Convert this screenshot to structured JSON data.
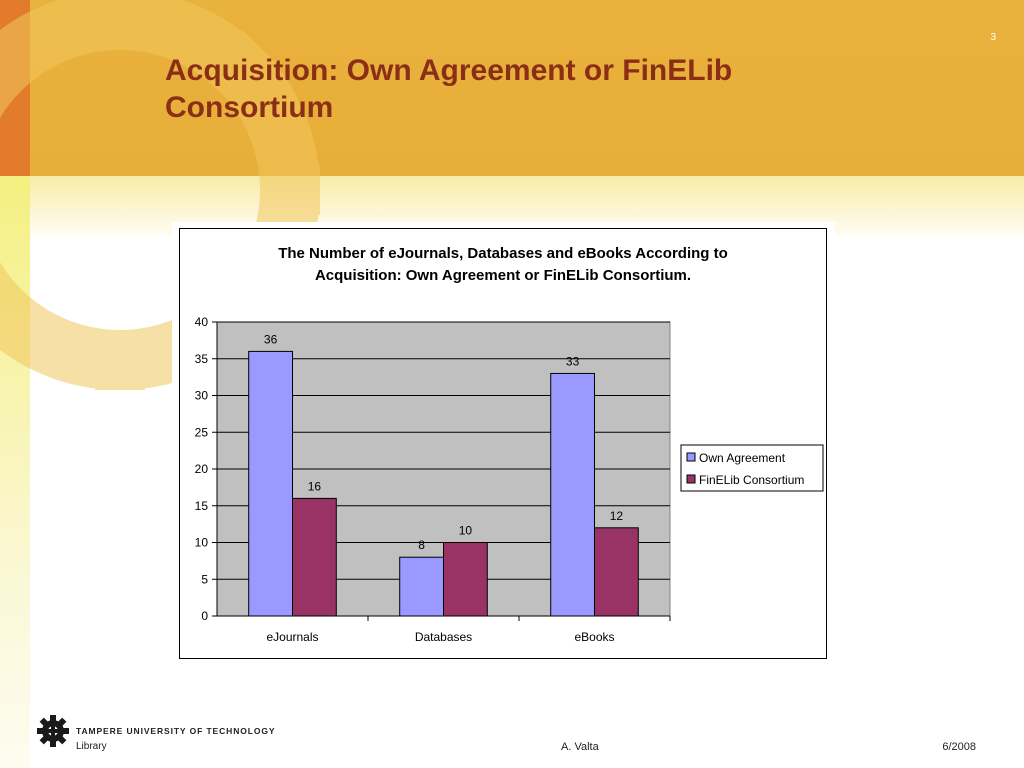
{
  "slide": {
    "number": "3",
    "title": "Acquisition: Own Agreement or FinELib Consortium",
    "colors": {
      "band": "#e9b23c",
      "title": "#8a2f16",
      "strip": "#e27c2c"
    }
  },
  "chart_data": {
    "type": "bar",
    "title_lines": [
      "The Number of eJournals, Databases and eBooks According to",
      "Acquisition: Own Agreement or FinELib Consortium."
    ],
    "categories": [
      "eJournals",
      "Databases",
      "eBooks"
    ],
    "series": [
      {
        "name": "Own Agreement",
        "values": [
          36,
          8,
          33
        ],
        "color": "#9999ff"
      },
      {
        "name": "FinELib Consortium",
        "values": [
          16,
          10,
          12
        ],
        "color": "#993366"
      }
    ],
    "yticks": [
      "0",
      "5",
      "10",
      "15",
      "20",
      "25",
      "30",
      "35",
      "40"
    ],
    "ylim": [
      0,
      40
    ],
    "xlabel": "",
    "ylabel": "",
    "grid": true,
    "plot_background": "#c0c0c0",
    "legend_position": "right",
    "data_labels": true
  },
  "footer": {
    "university": "TAMPERE UNIVERSITY OF TECHNOLOGY",
    "unit": "Library",
    "author": "A. Valta",
    "date": "6/2008",
    "logo_icon": "gear-logo-icon"
  }
}
